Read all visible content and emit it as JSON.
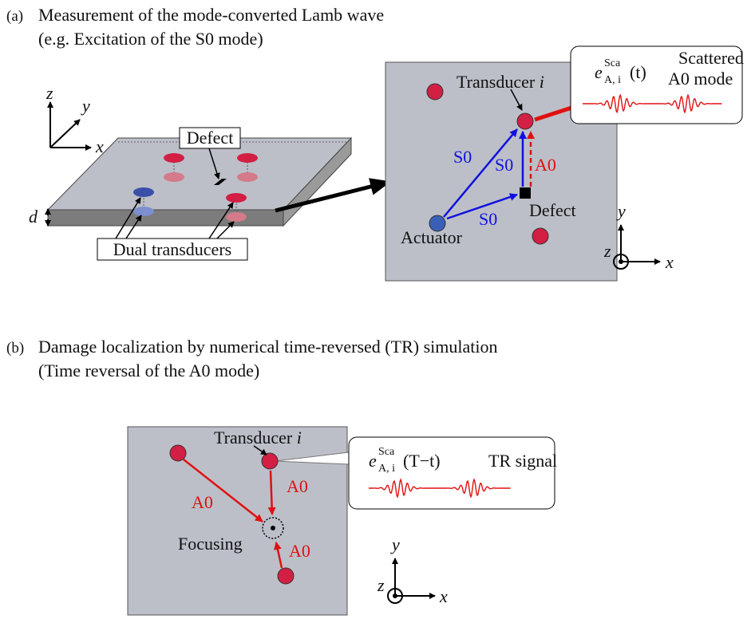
{
  "panel_a": {
    "label": "(a)",
    "title": "Measurement of the mode-converted Lamb wave",
    "subtitle": "(e.g. Excitation of the S0 mode)",
    "plate": {
      "axes": {
        "z": "z",
        "y": "y",
        "x": "x"
      },
      "defect": "Defect",
      "thickness": "d",
      "transducers": "Dual transducers"
    },
    "top_view": {
      "transducer": "Transducer",
      "index": "i",
      "paths": [
        "S0",
        "S0",
        "S0"
      ],
      "converted": "A0",
      "defect": "Defect",
      "actuator": "Actuator",
      "axes": {
        "y": "y",
        "z": "z",
        "x": "x"
      }
    },
    "callout": {
      "symbol": "e",
      "superscript": "Sca",
      "subscript": "A, i",
      "argument": "(t)",
      "label_1": "Scattered",
      "label_2": "A0 mode"
    }
  },
  "panel_b": {
    "label": "(b)",
    "title": "Damage localization by numerical time-reversed (TR) simulation",
    "subtitle": "(Time reversal of the A0 mode)",
    "top_view": {
      "transducer": "Transducer",
      "index": "i",
      "paths": [
        "A0",
        "A0",
        "A0"
      ],
      "focus": "Focusing",
      "axes": {
        "y": "y",
        "z": "z",
        "x": "x"
      }
    },
    "callout": {
      "symbol": "e",
      "superscript": "Sca",
      "subscript": "A, i",
      "argument": "(T−t)",
      "label": "TR signal"
    }
  }
}
